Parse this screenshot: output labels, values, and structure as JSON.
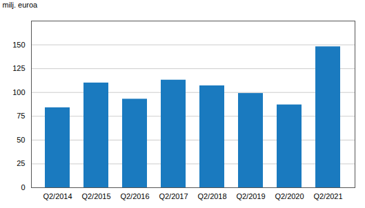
{
  "chart_data": {
    "type": "bar",
    "categories": [
      "Q2/2014",
      "Q2/2015",
      "Q2/2016",
      "Q2/2017",
      "Q2/2018",
      "Q2/2019",
      "Q2/2020",
      "Q2/2021"
    ],
    "values": [
      84,
      110,
      93,
      113,
      107,
      99,
      87,
      148
    ],
    "color": "#1a7abf",
    "ylabel": "milj. euroa",
    "ylim": [
      0,
      175
    ],
    "yticks": [
      0,
      25,
      50,
      75,
      100,
      125,
      150
    ],
    "grid": true
  }
}
